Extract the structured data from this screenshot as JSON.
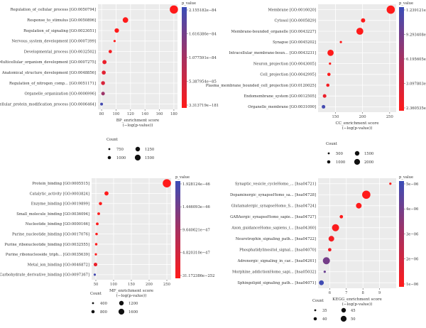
{
  "colors": {
    "high": "#ff1a1a",
    "low": "#3a4db8",
    "panel_bg": "#ebebeb",
    "grid": "#ffffff"
  },
  "chart_data": [
    {
      "type": "scatter",
      "xlabel": "BP_enrichment score",
      "xlabel2": "(−log(p-value))",
      "x_ticks": [
        "80",
        "100",
        "120",
        "140",
        "160",
        "180"
      ],
      "xlim": [
        75,
        185
      ],
      "categories": [
        "Regulation_of_cellular_process [GO:0050794]",
        "Response_to_stimulus [GO:0050896]",
        "Regulation_of_signaling [GO:0023051]",
        "Nervous_system_development [GO:0007399]",
        "Developmental_process [GO:0032502]",
        "Multicellular_organism_development [GO:0007275]",
        "Anatomical_structure_development [GO:0048856]",
        "Regulation_of_nitrogen_comp... [GO:0051171]",
        "Organelle_organization [GO:0006996]",
        "Cellular_protein_modification_process [GO:0006464]"
      ],
      "x": [
        180,
        113,
        101,
        98,
        92,
        84,
        83,
        82,
        82,
        80
      ],
      "count": [
        1600,
        1100,
        900,
        500,
        700,
        850,
        820,
        800,
        750,
        600
      ],
      "color_t": [
        0.0,
        0.0,
        0.0,
        0.0,
        0.05,
        0.1,
        0.15,
        0.2,
        0.5,
        0.95
      ],
      "colorbar_title": "p_value",
      "colorbar_labels": [
        "2.155182e−84",
        "1.616386e−84",
        "1.077591e−84",
        "5.387954e−85",
        "3.313719e−181"
      ],
      "legend_title": "Count",
      "legend_labels": [
        "750",
        "1000",
        "1250",
        "1500"
      ]
    },
    {
      "type": "scatter",
      "xlabel": "CC_enrichment score",
      "xlabel2": "(−log(p-value))",
      "x_ticks": [
        "150",
        "200",
        "250"
      ],
      "xlim": [
        118,
        262
      ],
      "categories": [
        "Membrane [GO:0016020]",
        "Cytosol [GO:0005829]",
        "Membrane-bounded_organelle [GO:0043227]",
        "Synapse [GO:0045202]",
        "Intracellular_membrane-boun... [GO:0043231]",
        "Neuron_projection [GO:0043005]",
        "Cell_projection [GO:0042995]",
        "Plasma_membrane_bounded_cell_projection [GO:0120025]",
        "Endomembrane_system [GO:0012505]",
        "Organelle_membrane [GO:0031090]"
      ],
      "x": [
        252,
        201,
        195,
        160,
        141,
        140,
        138,
        136,
        130,
        128
      ],
      "count": [
        2100,
        900,
        1700,
        300,
        1500,
        300,
        600,
        600,
        700,
        700
      ],
      "color_t": [
        0.0,
        0.0,
        0.0,
        0.0,
        0.0,
        0.0,
        0.0,
        0.05,
        0.1,
        0.95
      ],
      "colorbar_title": "p_value",
      "colorbar_labels": [
        "1.239121e−109",
        "9.293408e−110",
        "6.195605e−110",
        "3.097803e−110",
        "2.360535e−252"
      ],
      "legend_title": "Count",
      "legend_labels": [
        "500",
        "1000",
        "1500",
        "2000"
      ]
    },
    {
      "type": "scatter",
      "xlabel": "MF_enrichment score",
      "xlabel2": "(−log(p-value))",
      "x_ticks": [
        "50",
        "100",
        "150",
        "200",
        "250"
      ],
      "xlim": [
        38,
        262
      ],
      "categories": [
        "Protein_binding [GO:0005515]",
        "Catalytic_activity [GO:0003824]",
        "Enzyme_binding [GO:0019899]",
        "Small_molecule_binding [GO:0036094]",
        "Nucleotide_binding [GO:0000166]",
        "Purine_nucleotide_binding [GO:0017076]",
        "Purine_ribonucleotide_binding [GO:0032555]",
        "Purine_ribonucleoside_triph... [GO:0035639]",
        "Metal_ion_binding [GO:0046872]",
        "Carbohydrate_derivative_binding [GO:0097367]"
      ],
      "x": [
        250,
        80,
        63,
        58,
        54,
        52,
        51,
        50,
        49,
        47
      ],
      "count": [
        1700,
        800,
        600,
        500,
        500,
        450,
        450,
        400,
        700,
        400
      ],
      "color_t": [
        0.0,
        0.0,
        0.0,
        0.0,
        0.0,
        0.0,
        0.0,
        0.0,
        0.1,
        0.95
      ],
      "colorbar_title": "p_value",
      "colorbar_labels": [
        "1.928124e−46",
        "1.446093e−46",
        "9.640621e−47",
        "4.820310e−47",
        "31.172386e−252"
      ],
      "legend_title": "Count",
      "legend_labels": [
        "400",
        "800",
        "1200",
        "1600"
      ]
    },
    {
      "type": "scatter",
      "xlabel": "KEGG_enrichment score",
      "xlabel2": "(−log(p-value))",
      "x_ticks": [
        "6",
        "7",
        "8",
        "9"
      ],
      "xlim": [
        5.3,
        10.0
      ],
      "categories": [
        "Synaptic_vesicle_cycleHomo_... [hsa04721]",
        "Dopaminergic_synapseHomo_sa... [hsa04728]",
        "Glutamatergic_synapseHomo_S... [hsa04724]",
        "GABAergic_synapseHomo_sapie... [hsa04727]",
        "Axon_guidanceHomo_sapiens_(... [hsa04360]",
        "Neurotrophin_signaling_path... [hsa04722]",
        "Phosphatidylinositol_signal... [hsa04070]",
        "Adrenergic_signaling_in_car... [hsa04261]",
        "Morphine_addictionHomo_sapi... [hsa05032]",
        "Sphingolipid_signaling_path... [hsa04071]"
      ],
      "x": [
        9.65,
        8.2,
        7.75,
        6.7,
        6.35,
        6.1,
        6.0,
        5.8,
        5.7,
        5.5
      ],
      "count": [
        33,
        49,
        42,
        36,
        46,
        42,
        36,
        46,
        33,
        40
      ],
      "color_t": [
        0.0,
        0.0,
        0.0,
        0.0,
        0.02,
        0.05,
        0.08,
        0.7,
        0.75,
        0.97
      ],
      "colorbar_title": "p_value",
      "colorbar_labels": [
        "5e−06",
        "4e−06",
        "3e−06",
        "2e−06",
        "1e−06"
      ],
      "legend_title": "Count",
      "legend_labels": [
        "35",
        "40",
        "45",
        "50"
      ]
    }
  ]
}
